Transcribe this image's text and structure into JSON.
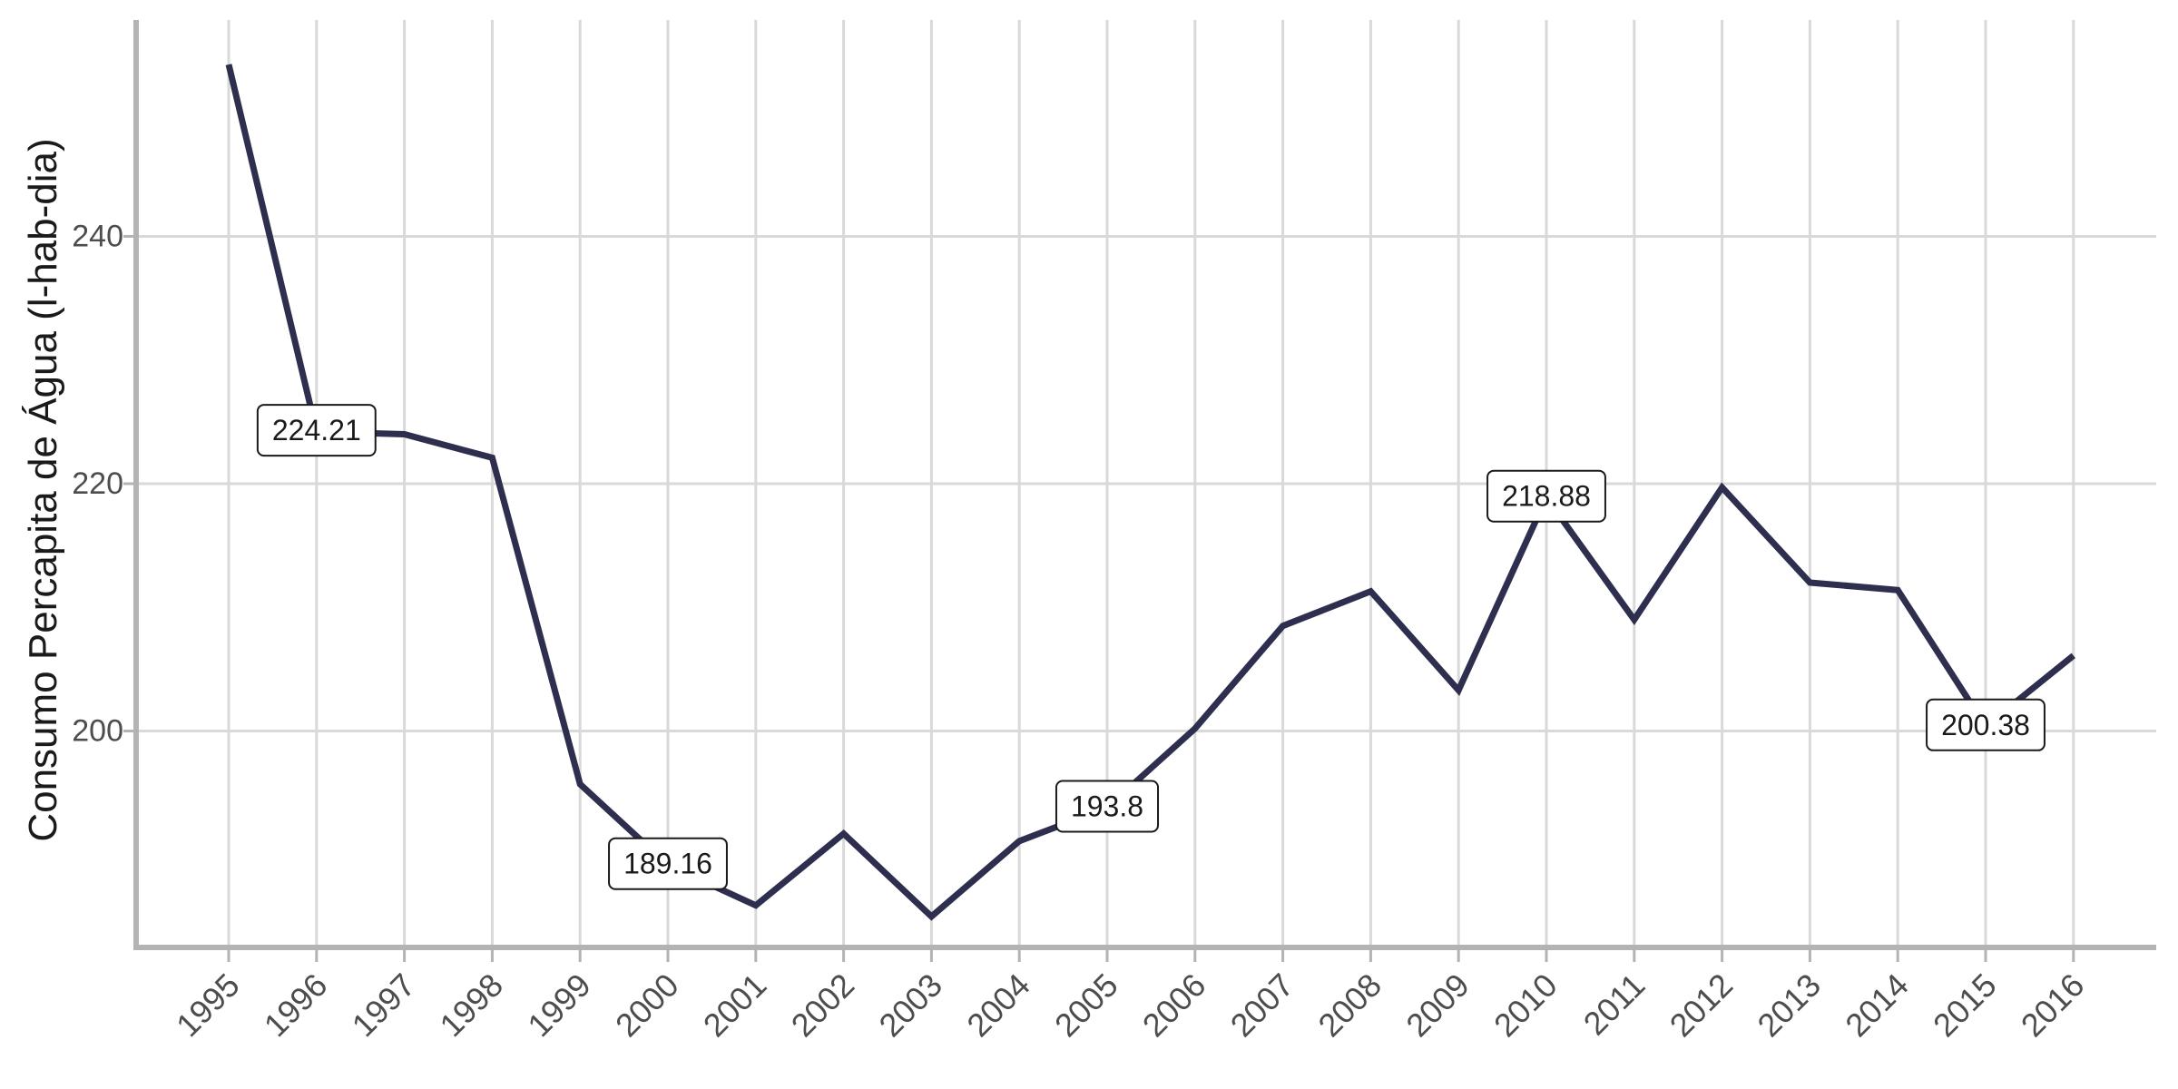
{
  "chart_data": {
    "type": "line",
    "title": "",
    "xlabel": "",
    "ylabel": "Consumo Percapita de Água (l-hab-dia)",
    "x": [
      "1995",
      "1996",
      "1997",
      "1998",
      "1999",
      "2000",
      "2001",
      "2002",
      "2003",
      "2004",
      "2005",
      "2006",
      "2007",
      "2008",
      "2009",
      "2010",
      "2011",
      "2012",
      "2013",
      "2014",
      "2015",
      "2016"
    ],
    "series": [
      {
        "values": [
          253.9,
          224.21,
          224.0,
          222.1,
          195.7,
          189.16,
          185.9,
          191.7,
          185.0,
          191.1,
          193.8,
          200.2,
          208.5,
          211.3,
          203.3,
          218.88,
          209.0,
          219.7,
          212.0,
          211.4,
          200.38,
          206.1
        ]
      }
    ],
    "ylim": [
      182.5,
      257.5
    ],
    "yticks": [
      "200",
      "220",
      "240"
    ],
    "grid": true,
    "line_color": "#2e2e4f",
    "labels": [
      {
        "x": "1996",
        "value": 224.21,
        "text": "224.21"
      },
      {
        "x": "2000",
        "value": 189.16,
        "text": "189.16"
      },
      {
        "x": "2005",
        "value": 193.8,
        "text": "193.8"
      },
      {
        "x": "2010",
        "value": 218.88,
        "text": "218.88"
      },
      {
        "x": "2015",
        "value": 200.38,
        "text": "200.38"
      }
    ]
  }
}
